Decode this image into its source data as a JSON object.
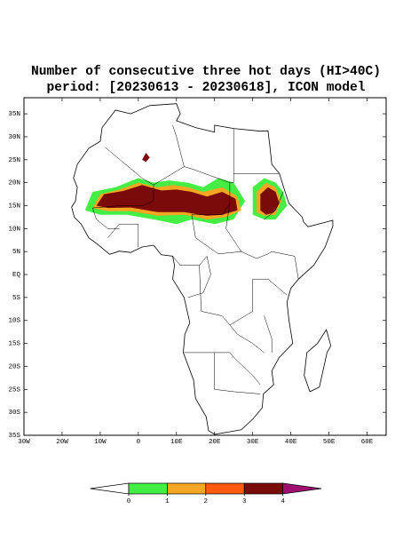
{
  "title": [
    "Number of consecutive three hot days (HI>40C)",
    "period: [20230613 - 20230618], ICON model"
  ],
  "map": {
    "xlim": [
      -30,
      65
    ],
    "ylim": [
      -35,
      38.5
    ],
    "xticks": [
      {
        "value": -30,
        "label": "30W"
      },
      {
        "value": -20,
        "label": "20W"
      },
      {
        "value": -10,
        "label": "10W"
      },
      0,
      {
        "value": 10,
        "label": "10E"
      },
      {
        "value": 20,
        "label": "20E"
      },
      {
        "value": 30,
        "label": "30E"
      },
      {
        "value": 40,
        "label": "40E"
      },
      {
        "value": 50,
        "label": "50E"
      },
      {
        "value": 60,
        "label": "60E"
      }
    ],
    "yticks": [
      {
        "value": 35,
        "label": "35N"
      },
      {
        "value": 30,
        "label": "30N"
      },
      {
        "value": 25,
        "label": "25N"
      },
      {
        "value": 20,
        "label": "20N"
      },
      {
        "value": 15,
        "label": "15N"
      },
      {
        "value": 10,
        "label": "10N"
      },
      {
        "value": 5,
        "label": "5N"
      },
      {
        "value": 0,
        "label": "EQ"
      },
      {
        "value": -5,
        "label": "5S"
      },
      {
        "value": -10,
        "label": "10S"
      },
      {
        "value": -15,
        "label": "15S"
      },
      {
        "value": -20,
        "label": "20S"
      },
      {
        "value": -25,
        "label": "25S"
      },
      {
        "value": -30,
        "label": "30S"
      },
      {
        "value": -35,
        "label": "35S"
      }
    ]
  },
  "colorbar": {
    "levels": [
      0,
      1,
      2,
      3,
      4
    ],
    "colors": [
      "#ffffff",
      "#44ee44",
      "#f5a623",
      "#ff5a10",
      "#7b0a0a",
      "#a01070"
    ]
  }
}
